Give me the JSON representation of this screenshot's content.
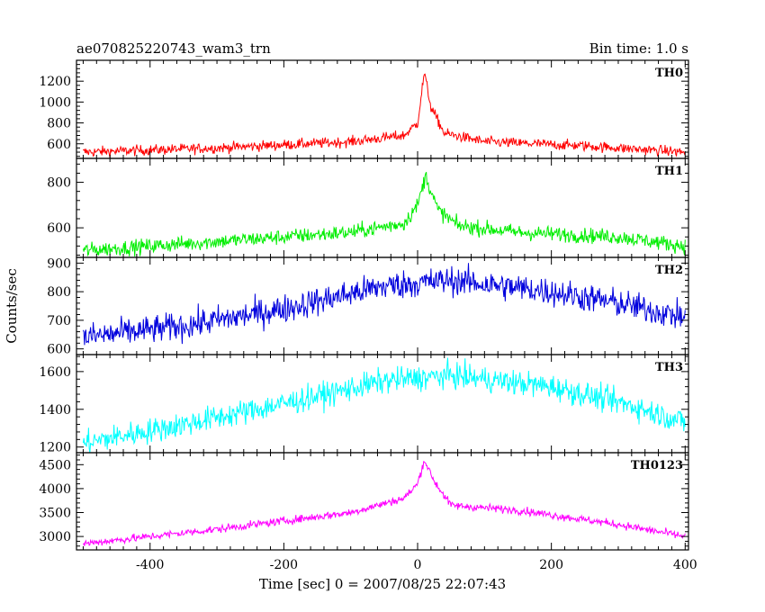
{
  "title_left": "ae070825220743_wam3_trn",
  "title_right": "Bin time: 1.0 s",
  "xlabel": "Time [sec] 0 = 2007/08/25 22:07:43",
  "ylabel": "Counts/sec",
  "chart_data": {
    "type": "line",
    "xlim": [
      -510,
      405
    ],
    "x_ticks": [
      -400,
      -200,
      0,
      200,
      400
    ],
    "grid": false,
    "panels": [
      {
        "name": "TH0",
        "color": "#ff0000",
        "ylim": [
          460,
          1400
        ],
        "y_ticks": [
          600,
          800,
          1000,
          1200
        ],
        "baseline": [
          [
            -500,
            520
          ],
          [
            -300,
            560
          ],
          [
            -100,
            620
          ],
          [
            -20,
            680
          ],
          [
            0,
            800
          ],
          [
            10,
            1280
          ],
          [
            20,
            950
          ],
          [
            40,
            700
          ],
          [
            100,
            620
          ],
          [
            250,
            580
          ],
          [
            400,
            520
          ]
        ],
        "noise": 45
      },
      {
        "name": "TH1",
        "color": "#00ee00",
        "ylim": [
          470,
          905
        ],
        "y_ticks": [
          600,
          800
        ],
        "baseline": [
          [
            -500,
            500
          ],
          [
            -300,
            540
          ],
          [
            -100,
            580
          ],
          [
            -20,
            620
          ],
          [
            0,
            700
          ],
          [
            12,
            830
          ],
          [
            30,
            680
          ],
          [
            60,
            610
          ],
          [
            150,
            580
          ],
          [
            300,
            560
          ],
          [
            400,
            520
          ]
        ],
        "noise": 30
      },
      {
        "name": "TH2",
        "color": "#0000dd",
        "ylim": [
          580,
          920
        ],
        "y_ticks": [
          600,
          700,
          800,
          900
        ],
        "baseline": [
          [
            -500,
            640
          ],
          [
            -350,
            680
          ],
          [
            -200,
            740
          ],
          [
            -50,
            820
          ],
          [
            50,
            840
          ],
          [
            200,
            800
          ],
          [
            300,
            760
          ],
          [
            400,
            710
          ]
        ],
        "noise": 45
      },
      {
        "name": "TH3",
        "color": "#00ffff",
        "ylim": [
          1170,
          1690
        ],
        "y_ticks": [
          1200,
          1400,
          1600
        ],
        "baseline": [
          [
            -500,
            1220
          ],
          [
            -350,
            1320
          ],
          [
            -200,
            1430
          ],
          [
            -50,
            1550
          ],
          [
            50,
            1580
          ],
          [
            200,
            1520
          ],
          [
            320,
            1420
          ],
          [
            400,
            1330
          ]
        ],
        "noise": 60
      },
      {
        "name": "TH0123",
        "color": "#ff00ff",
        "ylim": [
          2720,
          4750
        ],
        "y_ticks": [
          3000,
          3500,
          4000,
          4500
        ],
        "baseline": [
          [
            -500,
            2850
          ],
          [
            -300,
            3150
          ],
          [
            -100,
            3500
          ],
          [
            -20,
            3800
          ],
          [
            0,
            4100
          ],
          [
            10,
            4600
          ],
          [
            25,
            4150
          ],
          [
            50,
            3650
          ],
          [
            150,
            3550
          ],
          [
            300,
            3250
          ],
          [
            400,
            3000
          ]
        ],
        "noise": 75
      }
    ]
  }
}
